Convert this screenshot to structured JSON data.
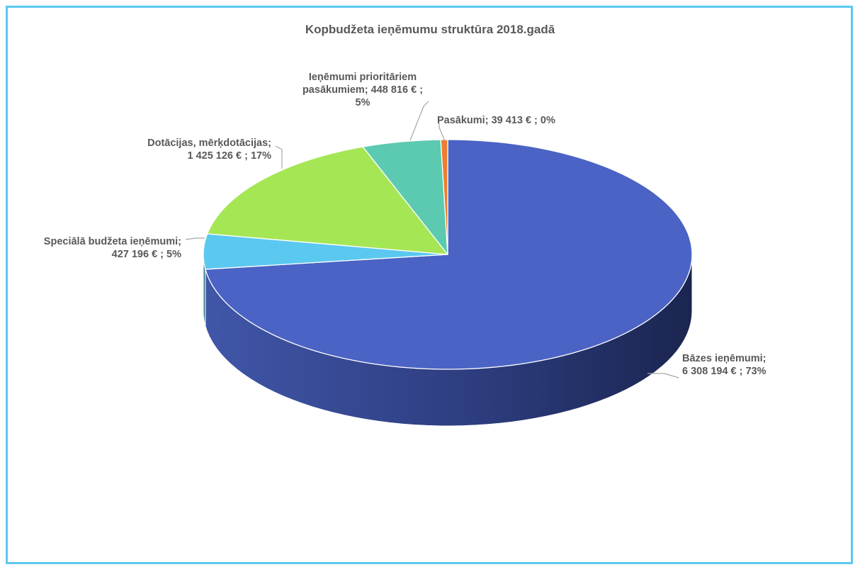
{
  "chart_data": {
    "type": "pie",
    "title": "Kopbudžeta ieņēmumu struktūra 2018.gadā",
    "series": [
      {
        "name": "Bāzes ieņēmumi",
        "value": 6308194,
        "value_label": "6 308 194 €",
        "percent_label": "73%",
        "color": "#4a63c4",
        "label_lines": [
          "Bāzes ieņēmumi;",
          "6 308 194 € ; 73%"
        ]
      },
      {
        "name": "Speciālā budžeta ieņēmumi",
        "value": 427196,
        "value_label": "427 196 €",
        "percent_label": "5%",
        "color": "#5bc8ef",
        "label_lines": [
          "Speciālā budžeta ieņēmumi;",
          "427 196 € ; 5%"
        ]
      },
      {
        "name": "Dotācijas, mērķdotācijas",
        "value": 1425126,
        "value_label": "1 425 126 €",
        "percent_label": "17%",
        "color": "#a5e655",
        "label_lines": [
          "Dotācijas, mērķdotācijas;",
          "1 425 126 € ; 17%"
        ]
      },
      {
        "name": "Ieņēmumi prioritāriem pasākumiem",
        "value": 448816,
        "value_label": "448 816 €",
        "percent_label": "5%",
        "color": "#5ccab0",
        "label_lines": [
          "Ieņēmumi prioritāriem",
          "pasākumiem;  448 816 € ;",
          "5%"
        ]
      },
      {
        "name": "Pasākumi",
        "value": 39413,
        "value_label": "39 413 €",
        "percent_label": "0%",
        "color": "#ed7d31",
        "label_lines": [
          "Pasākumi;  39 413 € ; 0%"
        ]
      }
    ],
    "legend": "none",
    "style": "3d"
  }
}
